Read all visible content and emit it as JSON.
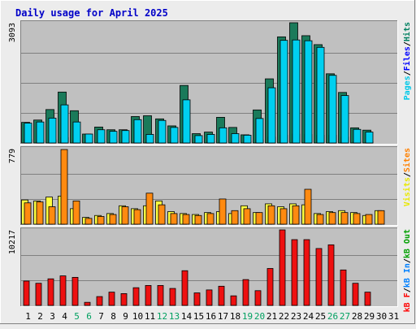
{
  "chart_data": [
    {
      "type": "bar",
      "title": "Daily usage for April 2025",
      "panel": "hits-files-pages",
      "categories": [
        "1",
        "2",
        "3",
        "4",
        "5",
        "6",
        "7",
        "8",
        "9",
        "10",
        "11",
        "12",
        "13",
        "14",
        "15",
        "16",
        "17",
        "18",
        "19",
        "20",
        "21",
        "22",
        "23",
        "24",
        "25",
        "26",
        "27",
        "28",
        "29",
        "30",
        "31"
      ],
      "weekend_categories": [
        "5",
        "6",
        "12",
        "13",
        "19",
        "20",
        "26",
        "27"
      ],
      "ylim": [
        0,
        3093
      ],
      "y_tick_label": "3093",
      "legend": [
        {
          "text": "Pages",
          "color": "#00c8e8"
        },
        {
          "text": "/",
          "color": "#000000"
        },
        {
          "text": "Files",
          "color": "#0000ff"
        },
        {
          "text": "/",
          "color": "#000000"
        },
        {
          "text": "Hits",
          "color": "#008060"
        }
      ],
      "series": [
        {
          "name": "Hits",
          "color": "#1a7a5a",
          "values": [
            530,
            590,
            860,
            1310,
            830,
            230,
            410,
            340,
            340,
            680,
            700,
            620,
            440,
            1480,
            240,
            280,
            660,
            400,
            210,
            850,
            1650,
            2730,
            3093,
            2760,
            2530,
            1780,
            1300,
            390,
            330,
            0,
            0
          ]
        },
        {
          "name": "Files",
          "color": "#0040ff",
          "values": [
            90,
            70,
            80,
            140,
            70,
            40,
            40,
            40,
            40,
            40,
            30,
            30,
            30,
            100,
            30,
            30,
            60,
            40,
            30,
            80,
            150,
            200,
            230,
            220,
            200,
            200,
            150,
            30,
            30,
            0,
            0
          ]
        },
        {
          "name": "Pages",
          "color": "#00d0f0",
          "values": [
            510,
            540,
            640,
            980,
            540,
            230,
            340,
            300,
            320,
            600,
            220,
            580,
            400,
            1110,
            190,
            220,
            390,
            240,
            200,
            630,
            1420,
            2640,
            2650,
            2630,
            2460,
            1740,
            1220,
            350,
            280,
            0,
            0
          ]
        }
      ]
    },
    {
      "type": "bar",
      "panel": "visits-sites",
      "categories": [
        "1",
        "2",
        "3",
        "4",
        "5",
        "6",
        "7",
        "8",
        "9",
        "10",
        "11",
        "12",
        "13",
        "14",
        "15",
        "16",
        "17",
        "18",
        "19",
        "20",
        "21",
        "22",
        "23",
        "24",
        "25",
        "26",
        "27",
        "28",
        "29",
        "30",
        "31"
      ],
      "ylim": [
        0,
        779
      ],
      "y_tick_label": "779",
      "legend": [
        {
          "text": "Visits",
          "color": "#e8e800"
        },
        {
          "text": "/",
          "color": "#000000"
        },
        {
          "text": "Sites",
          "color": "#ff8000"
        }
      ],
      "series": [
        {
          "name": "Visits",
          "color": "#ffff40",
          "values": [
            250,
            240,
            280,
            290,
            160,
            70,
            90,
            110,
            190,
            160,
            190,
            240,
            130,
            110,
            100,
            120,
            130,
            110,
            190,
            120,
            210,
            180,
            210,
            200,
            110,
            130,
            140,
            120,
            90,
            140,
            0
          ]
        },
        {
          "name": "Sites",
          "color": "#ff8a10",
          "values": [
            220,
            230,
            180,
            770,
            240,
            60,
            80,
            100,
            180,
            150,
            320,
            200,
            110,
            100,
            90,
            110,
            260,
            140,
            160,
            120,
            190,
            160,
            190,
            360,
            100,
            120,
            120,
            110,
            100,
            140,
            0
          ]
        }
      ]
    },
    {
      "type": "bar",
      "panel": "kbytes",
      "categories": [
        "1",
        "2",
        "3",
        "4",
        "5",
        "6",
        "7",
        "8",
        "9",
        "10",
        "11",
        "12",
        "13",
        "14",
        "15",
        "16",
        "17",
        "18",
        "19",
        "20",
        "21",
        "22",
        "23",
        "24",
        "25",
        "26",
        "27",
        "28",
        "29",
        "30",
        "31"
      ],
      "ylim": [
        0,
        10217
      ],
      "y_tick_label": "10217",
      "legend": [
        {
          "text": "kB F",
          "color": "#ff0000"
        },
        {
          "text": "/",
          "color": "#000000"
        },
        {
          "text": "kB In",
          "color": "#0080ff"
        },
        {
          "text": "/",
          "color": "#000000"
        },
        {
          "text": "kB Out",
          "color": "#00a000"
        }
      ],
      "series": [
        {
          "name": "kB F",
          "color": "#ee1010",
          "values": [
            3300,
            3000,
            3600,
            4000,
            3800,
            420,
            1200,
            1800,
            1600,
            2400,
            2700,
            2700,
            2300,
            4700,
            1700,
            2100,
            2600,
            1300,
            3500,
            2000,
            5000,
            10217,
            8900,
            8900,
            7700,
            8200,
            4800,
            3000,
            1800,
            0,
            0
          ]
        }
      ]
    }
  ]
}
